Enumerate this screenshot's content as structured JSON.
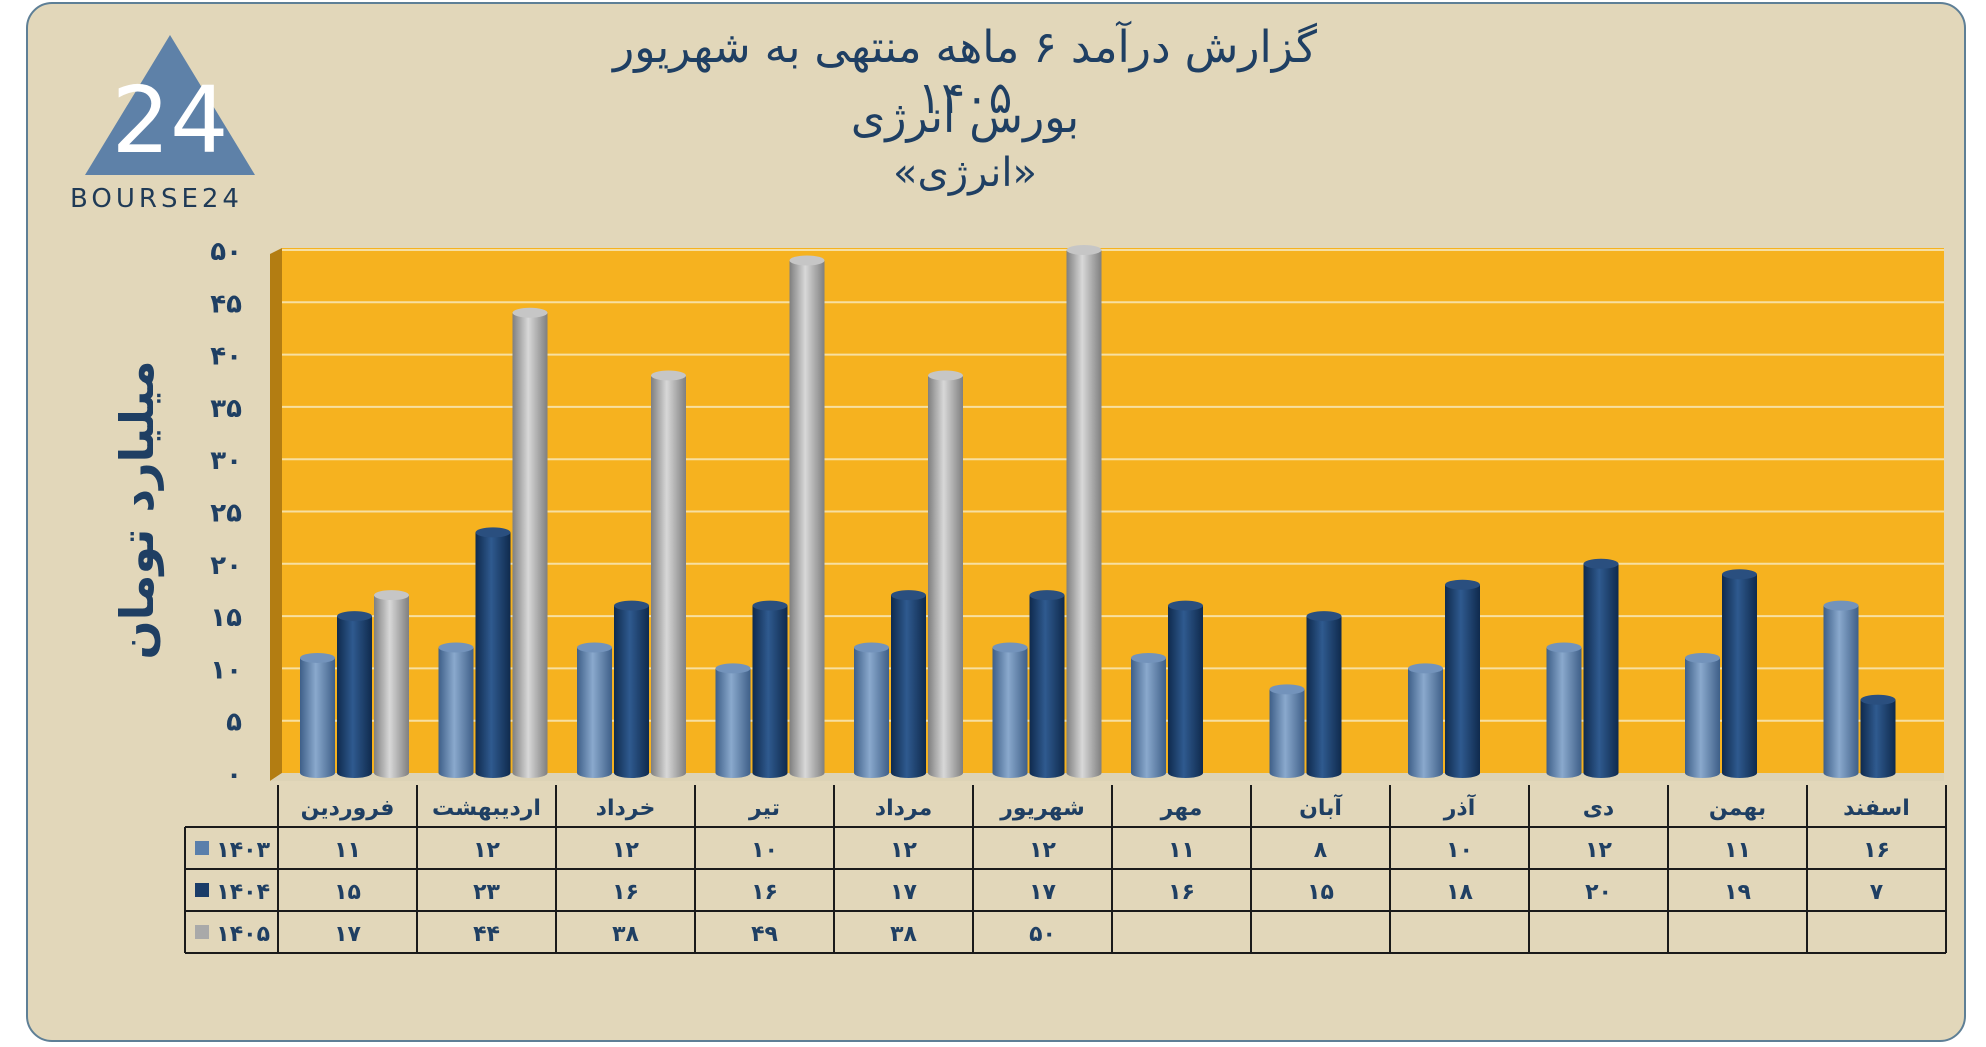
{
  "brand": {
    "logo_text": "BOURSE24",
    "logo_mark": "24"
  },
  "title": {
    "line1": "گزارش  درآمد ۶ ماهه منتهی به شهریور ۱۴۰۵",
    "line2": "بورس انرژی",
    "line3": "«انرژی»"
  },
  "colors": {
    "plot_background": "#f6b21f",
    "card_background": "#e2d7ba",
    "title_text": "#1f3f63",
    "series_1403": "#5a7fab",
    "series_1404": "#1a3c68",
    "series_1405": "#a9a9a9"
  },
  "chart_data": {
    "type": "bar",
    "title": "گزارش  درآمد ۶ ماهه منتهی به شهریور ۱۴۰۵",
    "subtitle": "بورس انرژی «انرژی»",
    "ylabel": "میلیارد تومان",
    "ylim": [
      0,
      50
    ],
    "y_ticks": [
      0,
      5,
      10,
      15,
      20,
      25,
      30,
      35,
      40,
      45,
      50
    ],
    "y_tick_labels": [
      "۰",
      "۵",
      "۱۰",
      "۱۵",
      "۲۰",
      "۲۵",
      "۳۰",
      "۳۵",
      "۴۰",
      "۴۵",
      "۵۰"
    ],
    "grid": true,
    "legend": "data table below chart",
    "categories": [
      "فروردین",
      "اردیبهشت",
      "خرداد",
      "تیر",
      "مرداد",
      "شهریور",
      "مهر",
      "آبان",
      "آذر",
      "دی",
      "بهمن",
      "اسفند"
    ],
    "series": [
      {
        "name": "۱۴۰۳",
        "values": [
          11,
          12,
          12,
          10,
          12,
          12,
          11,
          8,
          10,
          12,
          11,
          16
        ],
        "labels": [
          "۱۱",
          "۱۲",
          "۱۲",
          "۱۰",
          "۱۲",
          "۱۲",
          "۱۱",
          "۸",
          "۱۰",
          "۱۲",
          "۱۱",
          "۱۶"
        ]
      },
      {
        "name": "۱۴۰۴",
        "values": [
          15,
          23,
          16,
          16,
          17,
          17,
          16,
          15,
          18,
          20,
          19,
          7
        ],
        "labels": [
          "۱۵",
          "۲۳",
          "۱۶",
          "۱۶",
          "۱۷",
          "۱۷",
          "۱۶",
          "۱۵",
          "۱۸",
          "۲۰",
          "۱۹",
          "۷"
        ]
      },
      {
        "name": "۱۴۰۵",
        "values": [
          17,
          44,
          38,
          49,
          38,
          50,
          null,
          null,
          null,
          null,
          null,
          null
        ],
        "labels": [
          "۱۷",
          "۴۴",
          "۳۸",
          "۴۹",
          "۳۸",
          "۵۰",
          "",
          "",
          "",
          "",
          "",
          ""
        ]
      }
    ]
  }
}
